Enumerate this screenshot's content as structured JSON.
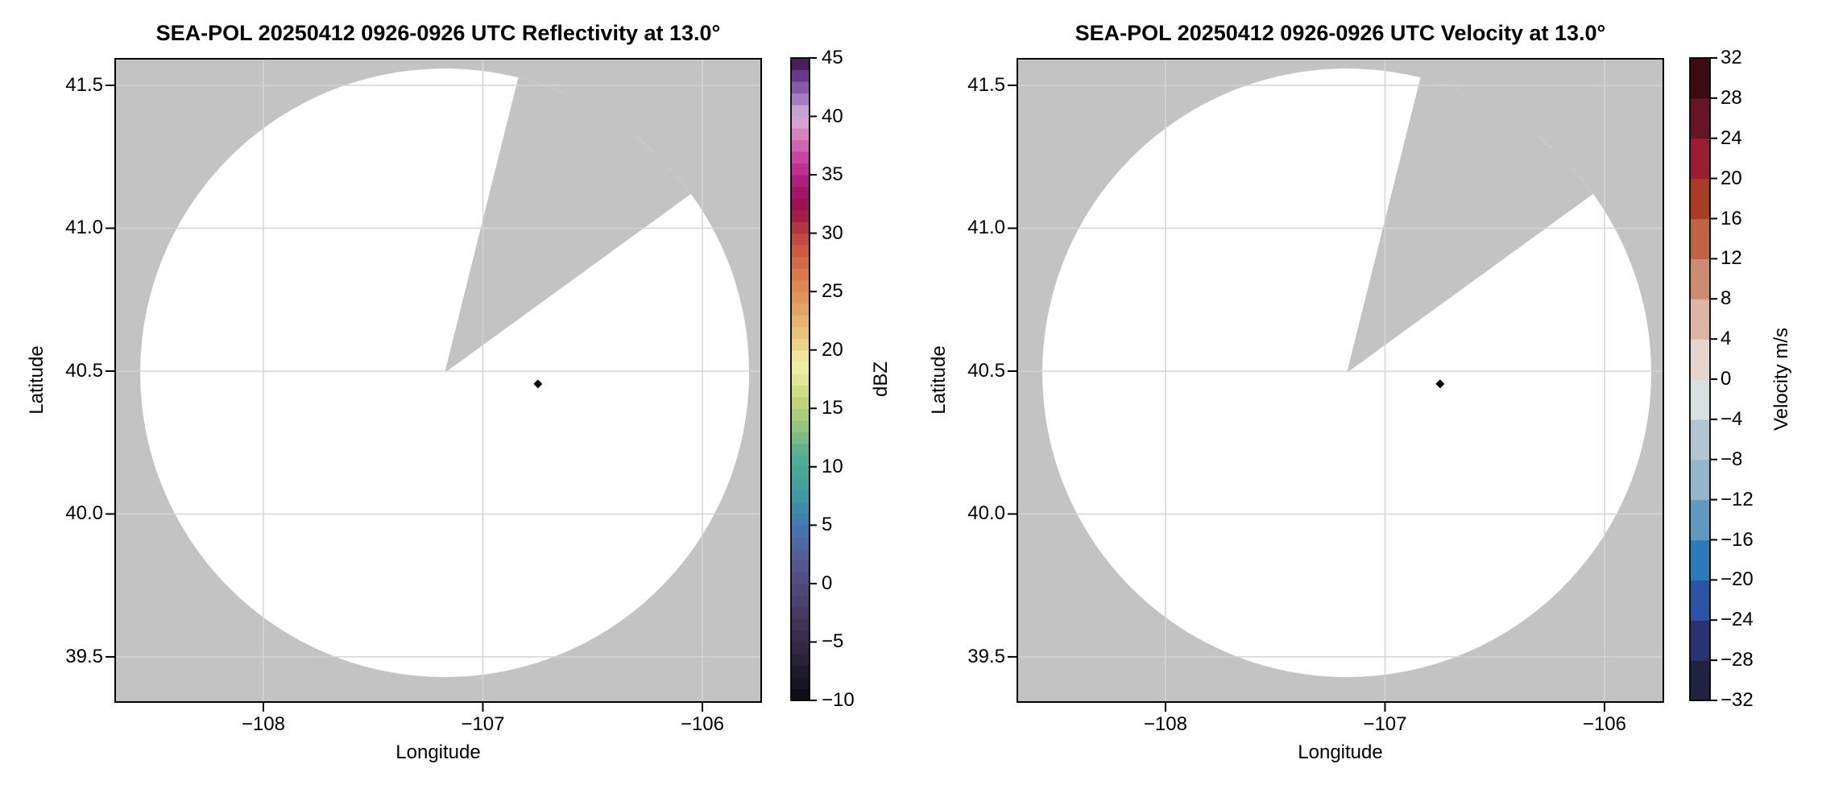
{
  "figure": {
    "background": "#ffffff",
    "description": "Two-panel SEA-POL radar PPI figure: reflectivity (left) and radial velocity (right), both blank scans showing only the coverage disc with a blocked azimuth sector"
  },
  "chart_data": [
    {
      "type": "heatmap",
      "variant": "radar_ppi",
      "title": "SEA-POL 20250412 0926-0926 UTC Reflectivity at 13.0°",
      "xlabel": "Longitude",
      "ylabel": "Latitude",
      "xlim": [
        -108.675,
        -105.732
      ],
      "ylim": [
        39.342,
        41.593
      ],
      "grid": true,
      "x_ticks": [
        {
          "value": -108,
          "label": "−108"
        },
        {
          "value": -107,
          "label": "−107"
        },
        {
          "value": -106,
          "label": "−106"
        }
      ],
      "y_ticks": [
        {
          "value": 41.5,
          "label": "41.5"
        },
        {
          "value": 41.0,
          "label": "41.0"
        },
        {
          "value": 40.5,
          "label": "40.5"
        },
        {
          "value": 40.0,
          "label": "40.0"
        },
        {
          "value": 39.5,
          "label": "39.5"
        }
      ],
      "radar": {
        "center_lon": -107.174,
        "center_lat": 40.494,
        "range_deg_lon": 1.387,
        "blocked_sector_azimuth_deg": [
          14,
          54
        ]
      },
      "field": {
        "name": "Reflectivity",
        "units": "dBZ",
        "note": "no echoes above display threshold; coverage area rendered white, no-data background gray"
      },
      "marker": {
        "lon": -106.749,
        "lat": 40.455,
        "shape": "diamond",
        "color": "#000000"
      },
      "colors": {
        "background_nodata": "#c3c3c3",
        "coverage": "#ffffff",
        "grid": "#d5d5d5",
        "frame": "#000000"
      },
      "colorbar": {
        "label": "dBZ",
        "min": -10,
        "max": 45,
        "segment_step": 1,
        "ticks": [
          {
            "value": 45,
            "label": "45"
          },
          {
            "value": 40,
            "label": "40"
          },
          {
            "value": 35,
            "label": "35"
          },
          {
            "value": 30,
            "label": "30"
          },
          {
            "value": 25,
            "label": "25"
          },
          {
            "value": 20,
            "label": "20"
          },
          {
            "value": 15,
            "label": "15"
          },
          {
            "value": 10,
            "label": "10"
          },
          {
            "value": 5,
            "label": "5"
          },
          {
            "value": 0,
            "label": "0"
          },
          {
            "value": -5,
            "label": "−5"
          },
          {
            "value": -10,
            "label": "−10"
          }
        ],
        "stops": [
          [
            -10,
            "#0b0911"
          ],
          [
            -8,
            "#1c1826"
          ],
          [
            -6,
            "#2b253a"
          ],
          [
            -4,
            "#3b3153"
          ],
          [
            -2,
            "#483d68"
          ],
          [
            0,
            "#534b7e"
          ],
          [
            2,
            "#545a94"
          ],
          [
            4,
            "#4a6cab"
          ],
          [
            5,
            "#4277b2"
          ],
          [
            6,
            "#3e87ab"
          ],
          [
            8,
            "#3f9fa0"
          ],
          [
            10,
            "#4aa997"
          ],
          [
            12,
            "#67b48d"
          ],
          [
            13,
            "#8ec27f"
          ],
          [
            15,
            "#b5cf75"
          ],
          [
            17,
            "#d8e28b"
          ],
          [
            18,
            "#ebeba0"
          ],
          [
            19,
            "#f3f0ab"
          ],
          [
            20,
            "#eeda90"
          ],
          [
            22,
            "#e9ba75"
          ],
          [
            24,
            "#e29c5f"
          ],
          [
            26,
            "#dc8050"
          ],
          [
            28,
            "#d26346"
          ],
          [
            30,
            "#bd4045"
          ],
          [
            31,
            "#a82a41"
          ],
          [
            32,
            "#9d1149"
          ],
          [
            33,
            "#9e0f5c"
          ],
          [
            34,
            "#a91a70"
          ],
          [
            35,
            "#b62487"
          ],
          [
            36,
            "#c33a9a"
          ],
          [
            37,
            "#cc51a8"
          ],
          [
            38,
            "#d375bb"
          ],
          [
            39,
            "#d891c9"
          ],
          [
            40,
            "#d5b0da"
          ],
          [
            41,
            "#b991cc"
          ],
          [
            42,
            "#9569b6"
          ],
          [
            43,
            "#77489c"
          ],
          [
            44,
            "#582c72"
          ],
          [
            45,
            "#3a1049"
          ]
        ]
      }
    },
    {
      "type": "heatmap",
      "variant": "radar_ppi",
      "title": "SEA-POL 20250412 0926-0926 UTC Velocity at 13.0°",
      "xlabel": "Longitude",
      "ylabel": "Latitude",
      "xlim": [
        -108.675,
        -105.732
      ],
      "ylim": [
        39.342,
        41.593
      ],
      "grid": true,
      "x_ticks": [
        {
          "value": -108,
          "label": "−108"
        },
        {
          "value": -107,
          "label": "−107"
        },
        {
          "value": -106,
          "label": "−106"
        }
      ],
      "y_ticks": [
        {
          "value": 41.5,
          "label": "41.5"
        },
        {
          "value": 41.0,
          "label": "41.0"
        },
        {
          "value": 40.5,
          "label": "40.5"
        },
        {
          "value": 40.0,
          "label": "40.0"
        },
        {
          "value": 39.5,
          "label": "39.5"
        }
      ],
      "radar": {
        "center_lon": -107.174,
        "center_lat": 40.494,
        "range_deg_lon": 1.387,
        "blocked_sector_azimuth_deg": [
          14,
          54
        ]
      },
      "field": {
        "name": "Velocity",
        "units": "m/s",
        "note": "no echoes above display threshold; coverage area rendered white, no-data background gray"
      },
      "marker": {
        "lon": -106.749,
        "lat": 40.455,
        "shape": "diamond",
        "color": "#000000"
      },
      "colors": {
        "background_nodata": "#c3c3c3",
        "coverage": "#ffffff",
        "grid": "#d5d5d5",
        "frame": "#000000"
      },
      "colorbar": {
        "label": "Velocity m/s",
        "min": -32,
        "max": 32,
        "ticks": [
          {
            "value": 32,
            "label": "32"
          },
          {
            "value": 28,
            "label": "28"
          },
          {
            "value": 24,
            "label": "24"
          },
          {
            "value": 20,
            "label": "20"
          },
          {
            "value": 16,
            "label": "16"
          },
          {
            "value": 12,
            "label": "12"
          },
          {
            "value": 8,
            "label": "8"
          },
          {
            "value": 4,
            "label": "4"
          },
          {
            "value": 0,
            "label": "0"
          },
          {
            "value": -4,
            "label": "−4"
          },
          {
            "value": -8,
            "label": "−8"
          },
          {
            "value": -12,
            "label": "−12"
          },
          {
            "value": -16,
            "label": "−16"
          },
          {
            "value": -20,
            "label": "−20"
          },
          {
            "value": -24,
            "label": "−24"
          },
          {
            "value": -28,
            "label": "−28"
          },
          {
            "value": -32,
            "label": "−32"
          }
        ],
        "blocks": [
          {
            "from": -32,
            "to": -28,
            "color": "#212240"
          },
          {
            "from": -28,
            "to": -24,
            "color": "#2a3273"
          },
          {
            "from": -24,
            "to": -20,
            "color": "#2d53a7"
          },
          {
            "from": -20,
            "to": -16,
            "color": "#2e79b7"
          },
          {
            "from": -16,
            "to": -12,
            "color": "#6299c1"
          },
          {
            "from": -12,
            "to": -8,
            "color": "#93b6ca"
          },
          {
            "from": -8,
            "to": -4,
            "color": "#b1c5d2"
          },
          {
            "from": -4,
            "to": 0,
            "color": "#d9dee1"
          },
          {
            "from": 0,
            "to": 4,
            "color": "#e7d5cd"
          },
          {
            "from": 4,
            "to": 8,
            "color": "#dcb5a5"
          },
          {
            "from": 8,
            "to": 12,
            "color": "#cc8a72"
          },
          {
            "from": 12,
            "to": 16,
            "color": "#c06243"
          },
          {
            "from": 16,
            "to": 20,
            "color": "#a93b27"
          },
          {
            "from": 20,
            "to": 24,
            "color": "#9b1c33"
          },
          {
            "from": 24,
            "to": 28,
            "color": "#671426"
          },
          {
            "from": 28,
            "to": 32,
            "color": "#3d0a13"
          }
        ]
      }
    }
  ]
}
